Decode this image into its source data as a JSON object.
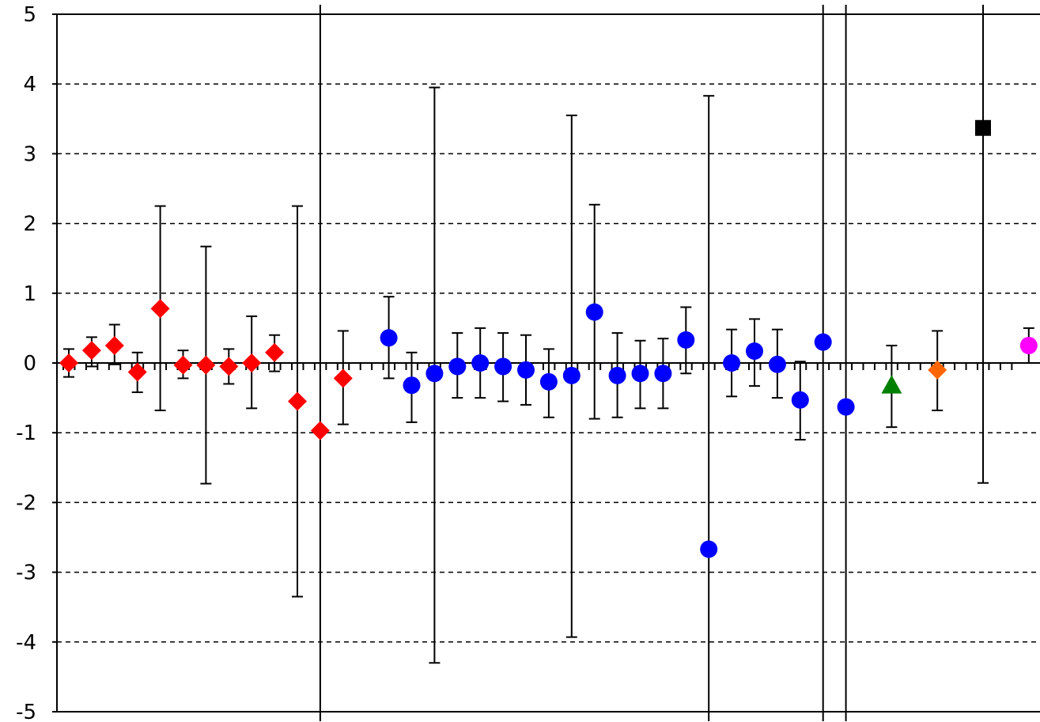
{
  "chart_data": {
    "type": "scatter",
    "title": "",
    "xlabel": "",
    "ylabel": "",
    "ylim": [
      -5,
      5
    ],
    "yticks": [
      "5",
      "4",
      "3",
      "2",
      "1",
      "0",
      "-1",
      "-2",
      "-3",
      "-4",
      "-5"
    ],
    "grid": "horizontal dashed",
    "legend": "none",
    "x_minor_ticks": 84,
    "series": [
      {
        "marker": "diamond",
        "color": "#ff0000",
        "points": [
          {
            "x": 1,
            "y": 0.0,
            "lo": -0.2,
            "hi": 0.2
          },
          {
            "x": 2,
            "y": 0.18,
            "lo": -0.05,
            "hi": 0.37
          },
          {
            "x": 3,
            "y": 0.25,
            "lo": -0.02,
            "hi": 0.55
          },
          {
            "x": 4,
            "y": -0.13,
            "lo": -0.42,
            "hi": 0.15
          },
          {
            "x": 5,
            "y": 0.78,
            "lo": -0.68,
            "hi": 2.25
          },
          {
            "x": 6,
            "y": -0.03,
            "lo": -0.22,
            "hi": 0.18
          },
          {
            "x": 7,
            "y": -0.03,
            "lo": -1.73,
            "hi": 1.67
          },
          {
            "x": 8,
            "y": -0.05,
            "lo": -0.3,
            "hi": 0.2
          },
          {
            "x": 9,
            "y": 0.0,
            "lo": -0.65,
            "hi": 0.67
          },
          {
            "x": 10,
            "y": 0.15,
            "lo": -0.12,
            "hi": 0.4
          },
          {
            "x": 11,
            "y": -0.55,
            "lo": -3.35,
            "hi": 2.25
          },
          {
            "x": 12,
            "y": -0.97,
            "lo": -6.0,
            "hi": 6.0
          },
          {
            "x": 13,
            "y": -0.22,
            "lo": -0.88,
            "hi": 0.46
          }
        ]
      },
      {
        "marker": "circle",
        "color": "#0000ff",
        "points": [
          {
            "x": 15,
            "y": 0.36,
            "lo": -0.22,
            "hi": 0.95
          },
          {
            "x": 16,
            "y": -0.32,
            "lo": -0.85,
            "hi": 0.15
          },
          {
            "x": 17,
            "y": -0.15,
            "lo": -4.3,
            "hi": 3.95
          },
          {
            "x": 18,
            "y": -0.05,
            "lo": -0.5,
            "hi": 0.43
          },
          {
            "x": 19,
            "y": 0.0,
            "lo": -0.5,
            "hi": 0.5
          },
          {
            "x": 20,
            "y": -0.05,
            "lo": -0.55,
            "hi": 0.43
          },
          {
            "x": 21,
            "y": -0.1,
            "lo": -0.6,
            "hi": 0.4
          },
          {
            "x": 22,
            "y": -0.27,
            "lo": -0.78,
            "hi": 0.2
          },
          {
            "x": 23,
            "y": -0.18,
            "lo": -3.93,
            "hi": 3.55
          },
          {
            "x": 24,
            "y": 0.73,
            "lo": -0.8,
            "hi": 2.27
          },
          {
            "x": 25,
            "y": -0.18,
            "lo": -0.78,
            "hi": 0.43
          },
          {
            "x": 26,
            "y": -0.15,
            "lo": -0.65,
            "hi": 0.32
          },
          {
            "x": 27,
            "y": -0.15,
            "lo": -0.65,
            "hi": 0.35
          },
          {
            "x": 28,
            "y": 0.33,
            "lo": -0.15,
            "hi": 0.8
          },
          {
            "x": 29,
            "y": -2.67,
            "lo": -6.0,
            "hi": 3.83
          },
          {
            "x": 30,
            "y": 0.0,
            "lo": -0.48,
            "hi": 0.48
          },
          {
            "x": 31,
            "y": 0.17,
            "lo": -0.33,
            "hi": 0.63
          },
          {
            "x": 32,
            "y": -0.02,
            "lo": -0.5,
            "hi": 0.48
          },
          {
            "x": 33,
            "y": -0.53,
            "lo": -1.1,
            "hi": 0.02
          },
          {
            "x": 34,
            "y": 0.3,
            "lo": -6.0,
            "hi": 6.0
          },
          {
            "x": 35,
            "y": -0.63,
            "lo": -6.0,
            "hi": 6.0
          }
        ]
      },
      {
        "marker": "triangle",
        "color": "#008000",
        "points": [
          {
            "x": 37,
            "y": -0.32,
            "lo": -0.92,
            "hi": 0.25
          }
        ]
      },
      {
        "marker": "diamond",
        "color": "#ff6600",
        "points": [
          {
            "x": 39,
            "y": -0.1,
            "lo": -0.68,
            "hi": 0.46
          }
        ]
      },
      {
        "marker": "square",
        "color": "#000000",
        "points": [
          {
            "x": 41,
            "y": 3.37,
            "lo": -1.72,
            "hi": 6.0
          }
        ]
      },
      {
        "marker": "circle",
        "color": "#ff00ff",
        "points": [
          {
            "x": 43,
            "y": 0.25,
            "lo": 0.0,
            "hi": 0.5
          }
        ]
      }
    ]
  }
}
